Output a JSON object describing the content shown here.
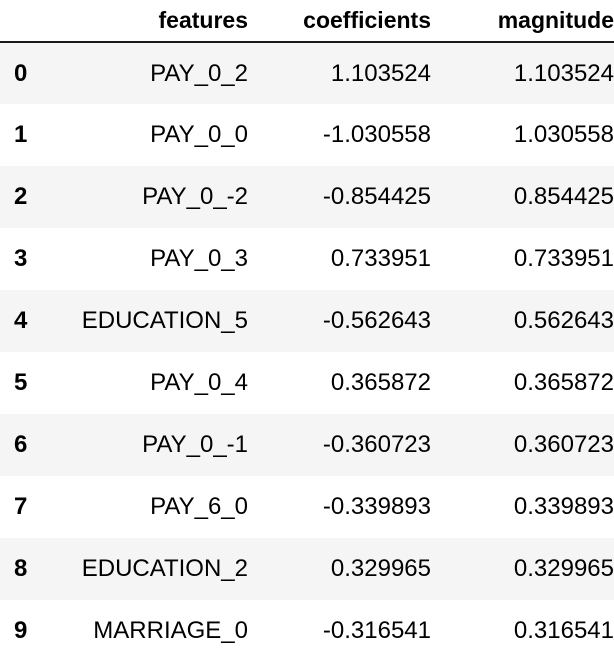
{
  "table": {
    "columns": {
      "index": "",
      "features": "features",
      "coefficients": "coefficients",
      "magnitude": "magnitude"
    },
    "rows": [
      {
        "index": "0",
        "features": "PAY_0_2",
        "coefficients": "1.103524",
        "magnitude": "1.103524"
      },
      {
        "index": "1",
        "features": "PAY_0_0",
        "coefficients": "-1.030558",
        "magnitude": "1.030558"
      },
      {
        "index": "2",
        "features": "PAY_0_-2",
        "coefficients": "-0.854425",
        "magnitude": "0.854425"
      },
      {
        "index": "3",
        "features": "PAY_0_3",
        "coefficients": "0.733951",
        "magnitude": "0.733951"
      },
      {
        "index": "4",
        "features": "EDUCATION_5",
        "coefficients": "-0.562643",
        "magnitude": "0.562643"
      },
      {
        "index": "5",
        "features": "PAY_0_4",
        "coefficients": "0.365872",
        "magnitude": "0.365872"
      },
      {
        "index": "6",
        "features": "PAY_0_-1",
        "coefficients": "-0.360723",
        "magnitude": "0.360723"
      },
      {
        "index": "7",
        "features": "PAY_6_0",
        "coefficients": "-0.339893",
        "magnitude": "0.339893"
      },
      {
        "index": "8",
        "features": "EDUCATION_2",
        "coefficients": "0.329965",
        "magnitude": "0.329965"
      },
      {
        "index": "9",
        "features": "MARRIAGE_0",
        "coefficients": "-0.316541",
        "magnitude": "0.316541"
      }
    ]
  },
  "colors": {
    "text": "#000000",
    "stripe": "#f5f5f5",
    "header_rule": "#1a1a1a",
    "background": "#ffffff"
  }
}
